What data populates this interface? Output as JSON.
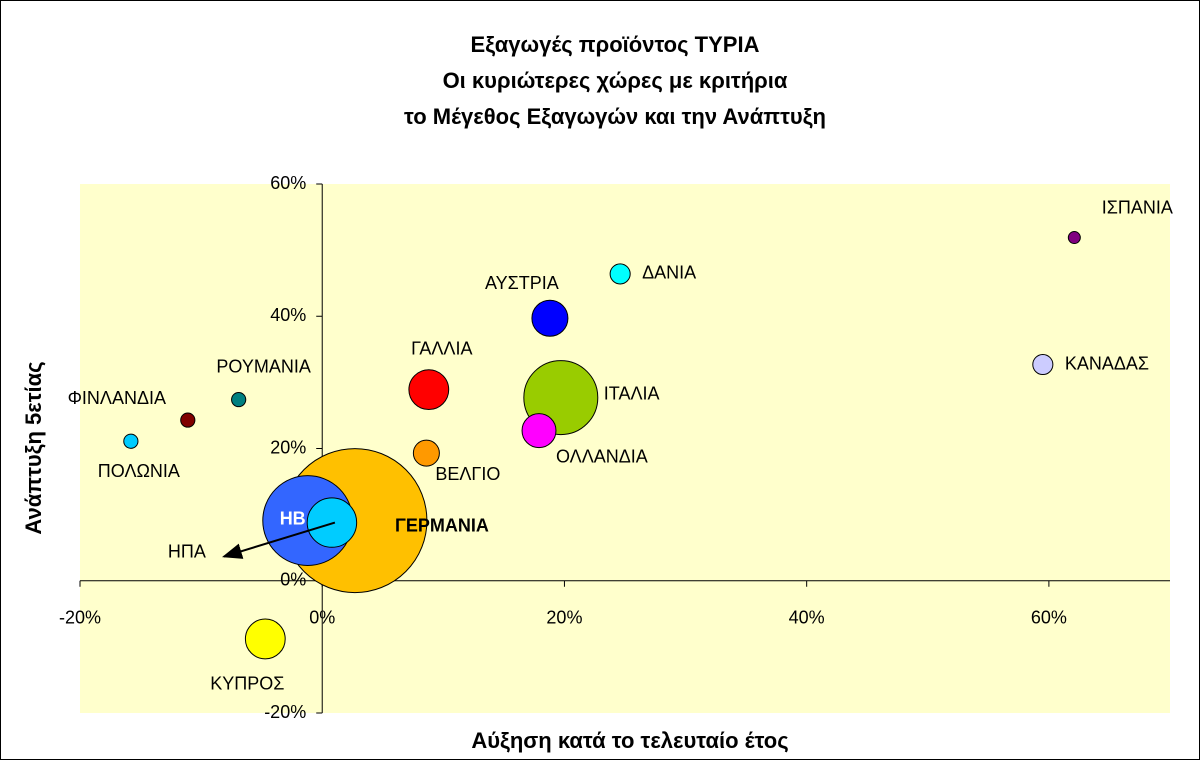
{
  "chart_data": {
    "type": "bubble",
    "title": [
      "Εξαγωγές προϊόντος ΤΥΡΙΑ",
      "Οι κυριώτερες χώρες με κριτήρια",
      "το Μέγεθος Εξαγωγών και την Ανάπτυξη"
    ],
    "xlabel": "Αύξηση κατά το τελευταίο έτος",
    "ylabel": "Ανάπτυξη 5ετίας",
    "xlim": [
      -20,
      70
    ],
    "ylim": [
      -20,
      60
    ],
    "xticks": [
      {
        "value": -20,
        "label": "-20%"
      },
      {
        "value": 0,
        "label": "0%"
      },
      {
        "value": 20,
        "label": "20%"
      },
      {
        "value": 40,
        "label": "40%"
      },
      {
        "value": 60,
        "label": "60%"
      }
    ],
    "yticks": [
      {
        "value": -20,
        "label": "-20%"
      },
      {
        "value": 0,
        "label": "0%"
      },
      {
        "value": 20,
        "label": "20%"
      },
      {
        "value": 40,
        "label": "40%"
      },
      {
        "value": 60,
        "label": "60%"
      }
    ],
    "points": [
      {
        "label": "ΓΕΡΜΑΝΙΑ",
        "x": 2.7,
        "y": 9.1,
        "size": 144,
        "color": "#ffc000"
      },
      {
        "label": "ΗΒ",
        "x": -1.2,
        "y": 9.1,
        "size": 56,
        "color": "#3366ff"
      },
      {
        "label": "ΗΠΑ",
        "x": 0.8,
        "y": 8.8,
        "size": 17,
        "color": "#00ccff"
      },
      {
        "label": "ΙΣΠΑΝΙΑ",
        "x": 62.1,
        "y": 51.9,
        "size": 1,
        "color": "#800080"
      },
      {
        "label": "ΔΑΝΙΑ",
        "x": 24.6,
        "y": 46.4,
        "size": 2.8,
        "color": "#00ffff"
      },
      {
        "label": "ΑΥΣΤΡΙΑ",
        "x": 18.8,
        "y": 39.7,
        "size": 9,
        "color": "#0000ff"
      },
      {
        "label": "ΚΑΝΑΔΑΣ",
        "x": 59.5,
        "y": 32.7,
        "size": 2.8,
        "color": "#ccccff"
      },
      {
        "label": "ΓΑΛΛΙΑ",
        "x": 8.8,
        "y": 28.9,
        "size": 11,
        "color": "#ff0000"
      },
      {
        "label": "ΙΤΑΛΙΑ",
        "x": 19.7,
        "y": 27.7,
        "size": 38,
        "color": "#99cc00"
      },
      {
        "label": "ΡΟΥΜΑΝΙΑ",
        "x": -6.9,
        "y": 27.4,
        "size": 1.4,
        "color": "#008080"
      },
      {
        "label": "ΦΙΝΛΑΝΔΙΑ",
        "x": -11.1,
        "y": 24.3,
        "size": 1.4,
        "color": "#800000"
      },
      {
        "label": "ΟΛΛΑΝΔΙΑ",
        "x": 17.9,
        "y": 22.7,
        "size": 8,
        "color": "#ff00ff"
      },
      {
        "label": "ΠΟΛΩΝΙΑ",
        "x": -15.8,
        "y": 21.1,
        "size": 1.4,
        "color": "#00ccff"
      },
      {
        "label": "ΒΕΛΓΙΟ",
        "x": 8.6,
        "y": 19.3,
        "size": 4.7,
        "color": "#ff9900"
      },
      {
        "label": "ΚΥΠΡΟΣ",
        "x": -4.7,
        "y": -8.8,
        "size": 11,
        "color": "#ffff00"
      }
    ]
  }
}
